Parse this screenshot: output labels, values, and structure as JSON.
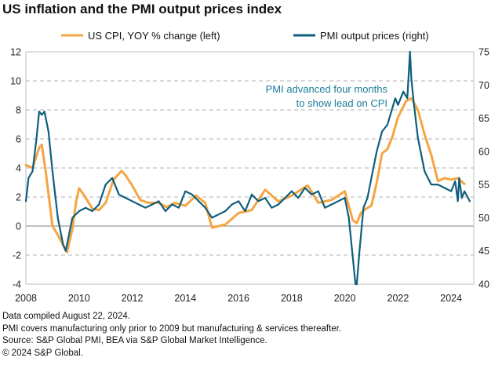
{
  "title": "US inflation and the PMI output prices index",
  "footnotes": [
    "Data compiled August 22, 2024.",
    "PMI covers manufacturing only prior to 2009 but manufacturing & services thereafter.",
    "Source: S&P Global PMI, BEA via S&P Global Market Intelligence.",
    "© 2024 S&P Global."
  ],
  "colors": {
    "cpi": "#f5a543",
    "pmi": "#0e5e7c",
    "annotation": "#1a7d9c",
    "zero_line": "#999999",
    "grid": "#9a9a9a"
  },
  "chart_data": {
    "type": "line",
    "x_ticks": [
      "2008",
      "2010",
      "2012",
      "2014",
      "2016",
      "2018",
      "2020",
      "2022",
      "2024"
    ],
    "left_axis": {
      "label": "",
      "ylim": [
        -4,
        12
      ],
      "ticks": [
        "-4",
        "-2",
        "0",
        "2",
        "4",
        "6",
        "8",
        "10",
        "12"
      ]
    },
    "right_axis": {
      "label": "",
      "ylim": [
        40,
        75
      ],
      "ticks": [
        "40",
        "45",
        "50",
        "55",
        "60",
        "65",
        "70",
        "75"
      ]
    },
    "grid": "horizontal dashed",
    "legend_position": "top",
    "annotation": {
      "lines": [
        "PMI advanced four months",
        "to show lead on CPI"
      ]
    },
    "series": [
      {
        "name": "US CPI, YOY % change (left)",
        "axis": "left",
        "color": "#f5a543",
        "x": [
          2008.0,
          2008.25,
          2008.5,
          2008.6,
          2008.75,
          2008.9,
          2009.0,
          2009.2,
          2009.4,
          2009.55,
          2009.75,
          2009.9,
          2010.0,
          2010.2,
          2010.5,
          2010.75,
          2011.0,
          2011.3,
          2011.6,
          2011.75,
          2012.0,
          2012.3,
          2012.6,
          2013.0,
          2013.3,
          2013.6,
          2014.0,
          2014.4,
          2014.75,
          2015.0,
          2015.5,
          2016.0,
          2016.5,
          2017.0,
          2017.5,
          2018.0,
          2018.6,
          2019.0,
          2019.5,
          2020.0,
          2020.3,
          2020.45,
          2020.6,
          2020.8,
          2021.0,
          2021.2,
          2021.4,
          2021.6,
          2021.8,
          2022.0,
          2022.3,
          2022.5,
          2022.75,
          2023.0,
          2023.25,
          2023.5,
          2023.75,
          2024.0,
          2024.25,
          2024.5
        ],
        "values": [
          4.2,
          4.0,
          5.4,
          5.6,
          3.7,
          1.5,
          0.0,
          -0.6,
          -1.3,
          -1.8,
          -0.2,
          1.8,
          2.6,
          2.1,
          1.2,
          1.1,
          1.6,
          3.2,
          3.8,
          3.5,
          2.8,
          1.8,
          1.6,
          1.6,
          1.3,
          1.6,
          1.4,
          2.1,
          1.6,
          -0.1,
          0.1,
          0.9,
          1.1,
          2.5,
          1.7,
          2.1,
          2.8,
          1.6,
          1.8,
          2.4,
          0.4,
          0.2,
          0.9,
          1.2,
          1.4,
          3.0,
          5.0,
          5.3,
          6.2,
          7.5,
          8.6,
          8.8,
          8.0,
          6.3,
          4.9,
          3.1,
          3.3,
          3.2,
          3.3,
          2.9
        ]
      },
      {
        "name": "PMI output prices (right)",
        "axis": "right",
        "color": "#0e5e7c",
        "x": [
          2008.0,
          2008.1,
          2008.25,
          2008.4,
          2008.5,
          2008.6,
          2008.7,
          2008.85,
          2009.0,
          2009.2,
          2009.4,
          2009.5,
          2009.6,
          2009.75,
          2010.0,
          2010.25,
          2010.5,
          2010.75,
          2011.0,
          2011.25,
          2011.5,
          2011.75,
          2012.0,
          2012.25,
          2012.5,
          2012.75,
          2013.0,
          2013.25,
          2013.5,
          2013.75,
          2014.0,
          2014.25,
          2014.5,
          2014.75,
          2015.0,
          2015.25,
          2015.5,
          2015.75,
          2016.0,
          2016.25,
          2016.5,
          2016.75,
          2017.0,
          2017.25,
          2017.5,
          2017.75,
          2018.0,
          2018.25,
          2018.5,
          2018.75,
          2019.0,
          2019.25,
          2019.5,
          2019.75,
          2020.0,
          2020.15,
          2020.3,
          2020.4,
          2020.45,
          2020.55,
          2020.7,
          2020.85,
          2021.0,
          2021.2,
          2021.4,
          2021.6,
          2021.75,
          2021.9,
          2022.0,
          2022.2,
          2022.35,
          2022.45,
          2022.5,
          2022.6,
          2022.75,
          2022.9,
          2023.0,
          2023.25,
          2023.5,
          2023.75,
          2024.0,
          2024.15,
          2024.25,
          2024.3,
          2024.4,
          2024.5,
          2024.7
        ],
        "values": [
          52.5,
          56,
          57,
          62,
          66,
          65.5,
          66,
          63,
          57,
          50,
          46,
          45,
          47,
          50,
          51,
          51.5,
          51,
          52,
          55,
          56,
          53.5,
          53,
          52.5,
          52,
          51.5,
          52,
          52.5,
          51,
          52,
          51.5,
          54,
          53.5,
          52.5,
          51.5,
          50,
          50.5,
          51,
          52,
          52.5,
          51,
          53.5,
          52.5,
          53,
          51.5,
          52,
          53,
          54,
          53,
          54.5,
          53.5,
          54,
          51.5,
          52,
          52.5,
          53,
          50,
          44,
          40,
          40,
          45,
          51.5,
          53,
          56,
          60,
          63,
          64,
          66,
          68,
          67,
          69,
          68,
          75,
          71,
          67,
          62,
          59,
          57,
          55,
          55,
          54.5,
          54,
          55.5,
          52.5,
          56,
          53,
          54,
          52.5
        ]
      }
    ]
  }
}
